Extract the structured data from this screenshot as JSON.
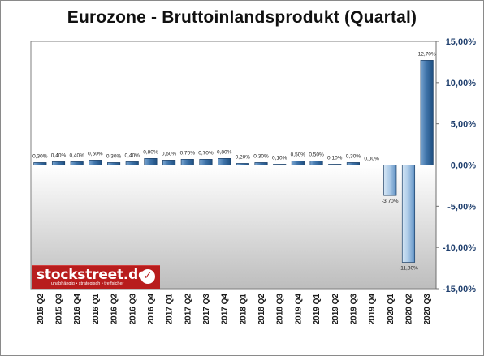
{
  "chart_data": {
    "type": "bar",
    "title": "Eurozone - Bruttoinlandsprodukt (Quartal)",
    "xlabel": "",
    "ylabel": "",
    "categories": [
      "2015 Q2",
      "2015 Q3",
      "2016 Q4",
      "2016 Q1",
      "2016 Q2",
      "2016 Q3",
      "2016 Q4",
      "2017 Q1",
      "2017 Q2",
      "2017 Q3",
      "2017 Q4",
      "2018 Q1",
      "2018 Q2",
      "2018 Q3",
      "2019 Q4",
      "2019 Q1",
      "2019 Q2",
      "2019 Q3",
      "2019 Q4",
      "2020 Q1",
      "2020 Q2",
      "2020 Q3"
    ],
    "values": [
      0.3,
      0.4,
      0.4,
      0.6,
      0.3,
      0.4,
      0.8,
      0.6,
      0.7,
      0.7,
      0.8,
      0.2,
      0.3,
      0.1,
      0.5,
      0.5,
      0.1,
      0.3,
      0.0,
      -3.7,
      -11.8,
      12.7
    ],
    "data_labels": [
      "0,30%",
      "0,40%",
      "0,40%",
      "0,60%",
      "0,30%",
      "0,40%",
      "0,80%",
      "0,60%",
      "0,70%",
      "0,70%",
      "0,80%",
      "0,20%",
      "0,30%",
      "0,10%",
      "0,50%",
      "0,50%",
      "0,10%",
      "0,30%",
      "0,00%",
      "-3,70%",
      "-11,80%",
      "12,70%"
    ],
    "ylim": [
      -15,
      15
    ],
    "yticks": [
      15,
      10,
      5,
      0,
      -5,
      -10,
      -15
    ],
    "ytick_labels": [
      "15,00%",
      "10,00%",
      "5,00%",
      "0,00%",
      "-5,00%",
      "-10,00%",
      "-15,00%"
    ],
    "y_axis_side": "right",
    "grid": false,
    "legend": "none",
    "colors": {
      "bar_dark": "#2e5f91",
      "bar_light": "#a9c8e6",
      "axis_text": "#1f3f6e",
      "plot_top": "#ffffff",
      "plot_bottom": "#c4c4c4"
    }
  },
  "logo": {
    "name": "stockstreet.de",
    "tagline": "unabhängig • strategisch • treffsicher",
    "check_icon": "check-icon"
  }
}
